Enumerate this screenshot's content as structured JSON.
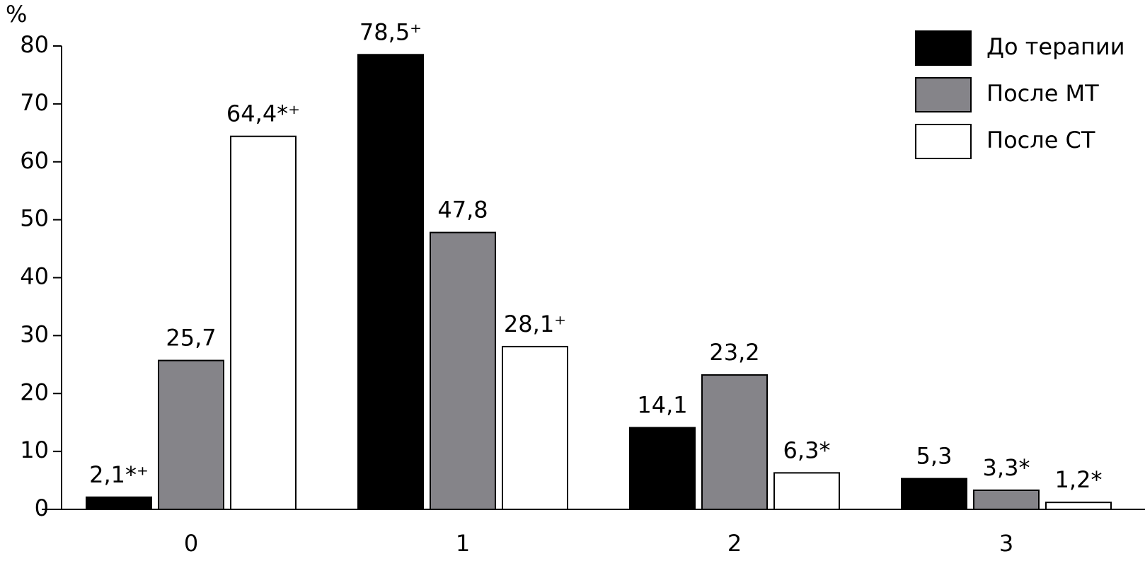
{
  "chart_data": {
    "type": "bar",
    "ylabel": "%",
    "categories": [
      "0",
      "1",
      "2",
      "3"
    ],
    "series": [
      {
        "name": "До терапии",
        "color": "#000000",
        "values": [
          2.1,
          78.5,
          14.1,
          5.3
        ],
        "value_labels": [
          "2,1*⁺",
          "78,5⁺",
          "14,1",
          "5,3"
        ]
      },
      {
        "name": "После МТ",
        "color": "#858489",
        "values": [
          25.7,
          47.8,
          23.2,
          3.3
        ],
        "value_labels": [
          "25,7",
          "47,8",
          "23,2",
          "3,3*"
        ]
      },
      {
        "name": "После СТ",
        "color": "#ffffff",
        "values": [
          64.4,
          28.1,
          6.3,
          1.2
        ],
        "value_labels": [
          "64,4*⁺",
          "28,1⁺",
          "6,3*",
          "1,2*"
        ]
      }
    ],
    "ylim": [
      0,
      80
    ],
    "yticks": [
      0,
      10,
      20,
      30,
      40,
      50,
      60,
      70,
      80
    ],
    "legend": "top-right"
  }
}
